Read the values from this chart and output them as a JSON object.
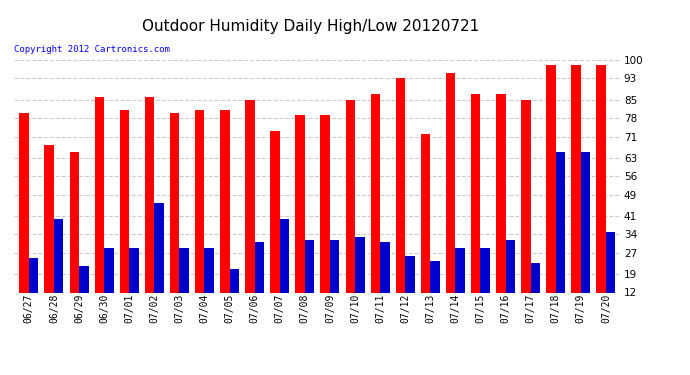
{
  "title": "Outdoor Humidity Daily High/Low 20120721",
  "copyright": "Copyright 2012 Cartronics.com",
  "dates": [
    "06/27",
    "06/28",
    "06/29",
    "06/30",
    "07/01",
    "07/02",
    "07/03",
    "07/04",
    "07/05",
    "07/06",
    "07/07",
    "07/08",
    "07/09",
    "07/10",
    "07/11",
    "07/12",
    "07/13",
    "07/14",
    "07/15",
    "07/16",
    "07/17",
    "07/18",
    "07/19",
    "07/20"
  ],
  "high": [
    80,
    68,
    65,
    86,
    81,
    86,
    80,
    81,
    81,
    85,
    73,
    79,
    79,
    85,
    87,
    93,
    72,
    95,
    87,
    87,
    85,
    98,
    98,
    98
  ],
  "low": [
    25,
    40,
    22,
    29,
    29,
    46,
    29,
    29,
    21,
    31,
    40,
    32,
    32,
    33,
    31,
    26,
    24,
    29,
    29,
    32,
    23,
    65,
    65,
    35
  ],
  "high_color": "#ff0000",
  "low_color": "#0000cc",
  "bg_color": "#ffffff",
  "grid_color": "#cccccc",
  "ylim_min": 12,
  "ylim_max": 100,
  "yticks": [
    12,
    19,
    27,
    34,
    41,
    49,
    56,
    63,
    71,
    78,
    85,
    93,
    100
  ],
  "bar_width": 0.38,
  "title_fontsize": 11,
  "tick_fontsize": 7.5,
  "xlabel_fontsize": 7
}
